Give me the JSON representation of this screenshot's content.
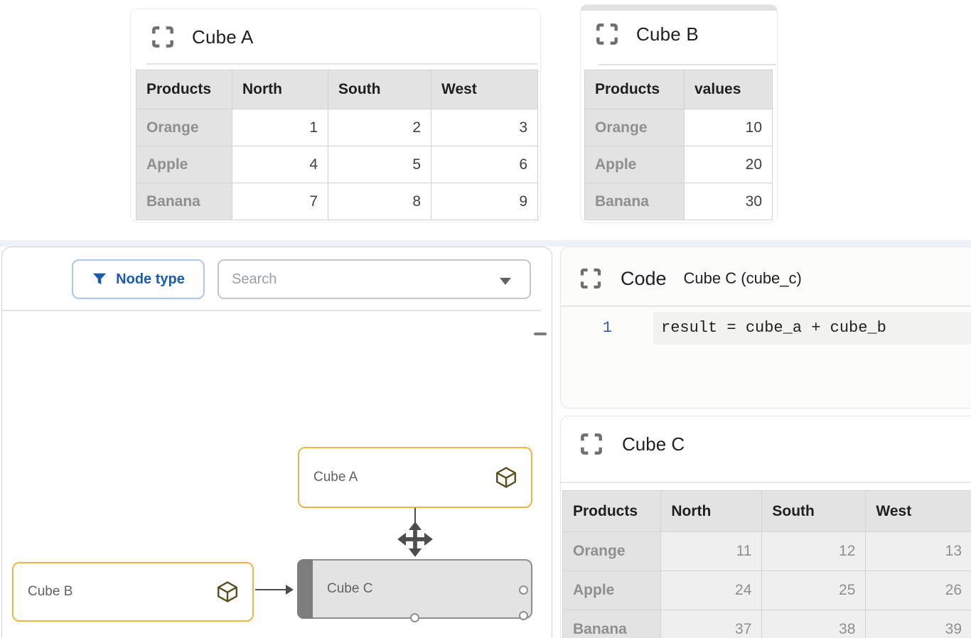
{
  "cube_a_panel": {
    "title": "Cube A",
    "table": {
      "columns": [
        "Products",
        "North",
        "South",
        "West"
      ],
      "rows": [
        [
          "Orange",
          "1",
          "2",
          "3"
        ],
        [
          "Apple",
          "4",
          "5",
          "6"
        ],
        [
          "Banana",
          "7",
          "8",
          "9"
        ]
      ]
    }
  },
  "cube_b_panel": {
    "title": "Cube B",
    "table": {
      "columns": [
        "Products",
        "values"
      ],
      "rows": [
        [
          "Orange",
          "10"
        ],
        [
          "Apple",
          "20"
        ],
        [
          "Banana",
          "30"
        ]
      ]
    }
  },
  "graph_panel": {
    "node_type_button": "Node type",
    "search_placeholder": "Search",
    "nodes": {
      "a": "Cube A",
      "b": "Cube B",
      "c": "Cube C"
    }
  },
  "code_panel": {
    "title": "Code",
    "subtitle": "Cube C (cube_c)",
    "line_number": "1",
    "code": "result = cube_a + cube_b"
  },
  "cube_c_panel": {
    "title": "Cube C",
    "table": {
      "columns": [
        "Products",
        "North",
        "South",
        "West"
      ],
      "rows": [
        [
          "Orange",
          "11",
          "12",
          "13"
        ],
        [
          "Apple",
          "24",
          "25",
          "26"
        ],
        [
          "Banana",
          "37",
          "38",
          "39"
        ]
      ]
    }
  },
  "colors": {
    "accent_blue": "#1a5bb0",
    "node_border_amber": "#eeb543",
    "cube_icon_olive": "#5b4d1e",
    "edge_grey": "#4d4d4d",
    "line_number_blue": "#3457b2"
  }
}
